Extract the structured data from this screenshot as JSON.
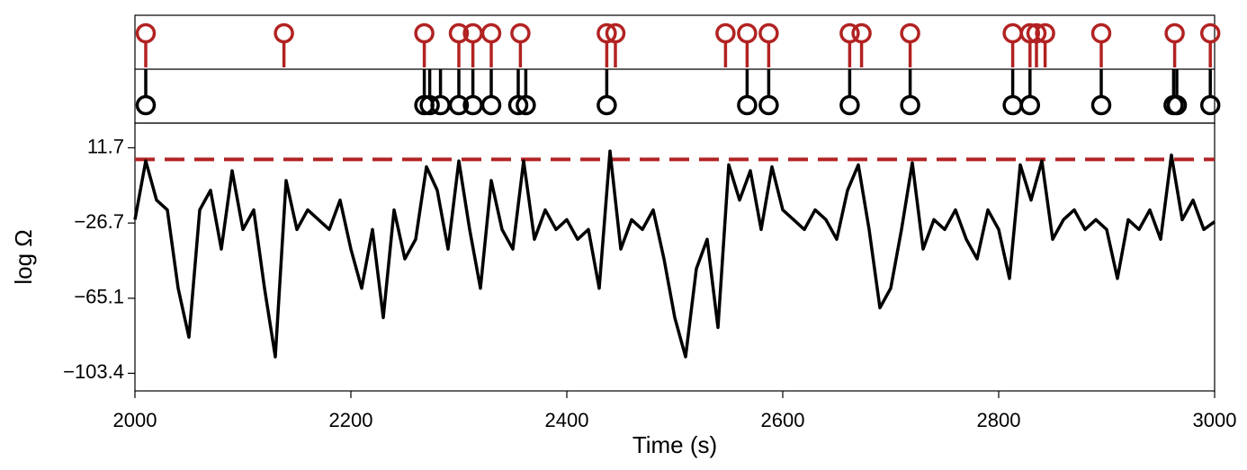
{
  "chart_data": {
    "type": "line",
    "x_label": "Time (s)",
    "y_label": "log Ω",
    "x": [
      2000,
      2010,
      2020,
      2030,
      2040,
      2050,
      2060,
      2070,
      2080,
      2090,
      2100,
      2110,
      2120,
      2130,
      2140,
      2150,
      2160,
      2170,
      2180,
      2190,
      2200,
      2210,
      2220,
      2230,
      2240,
      2250,
      2260,
      2270,
      2280,
      2290,
      2300,
      2310,
      2320,
      2330,
      2340,
      2350,
      2360,
      2370,
      2380,
      2390,
      2400,
      2410,
      2420,
      2430,
      2440,
      2450,
      2460,
      2470,
      2480,
      2490,
      2500,
      2510,
      2520,
      2530,
      2540,
      2550,
      2560,
      2570,
      2580,
      2590,
      2600,
      2610,
      2620,
      2630,
      2640,
      2650,
      2660,
      2670,
      2680,
      2690,
      2700,
      2710,
      2720,
      2730,
      2740,
      2750,
      2760,
      2770,
      2780,
      2790,
      2800,
      2810,
      2820,
      2830,
      2840,
      2850,
      2860,
      2870,
      2880,
      2890,
      2900,
      2910,
      2920,
      2930,
      2940,
      2950,
      2960,
      2970,
      2980,
      2990,
      3000
    ],
    "series": [
      {
        "color": "#000000",
        "values": [
          -25,
          5,
          -15,
          -20,
          -60,
          -85,
          -20,
          -10,
          -40,
          0,
          -30,
          -20,
          -60,
          -95,
          -5,
          -30,
          -20,
          -25,
          -30,
          -15,
          -40,
          -60,
          -30,
          -75,
          -20,
          -45,
          -35,
          2,
          -10,
          -40,
          5,
          -30,
          -60,
          -5,
          -30,
          -40,
          5,
          -35,
          -20,
          -30,
          -25,
          -35,
          -30,
          -60,
          10,
          -40,
          -25,
          -30,
          -20,
          -45,
          -75,
          -95,
          -50,
          -35,
          -80,
          3,
          -15,
          0,
          -30,
          2,
          -20,
          -25,
          -30,
          -20,
          -25,
          -35,
          -10,
          3,
          -30,
          -70,
          -60,
          -30,
          4,
          -40,
          -25,
          -30,
          -20,
          -35,
          -45,
          -20,
          -30,
          -55,
          3,
          -15,
          5,
          -35,
          -25,
          -20,
          -30,
          -25,
          -30,
          -55,
          -25,
          -30,
          -20,
          -35,
          8,
          -25,
          -15,
          -30,
          -26
        ]
      }
    ],
    "threshold": 5.8,
    "threshold_color": "#b22222",
    "events": [
      {
        "color": "#b22222",
        "times": [
          2010,
          2138,
          2268,
          2300,
          2313,
          2330,
          2357,
          2437,
          2445,
          2547,
          2567,
          2587,
          2662,
          2673,
          2718,
          2813,
          2829,
          2835,
          2843,
          2895,
          2963,
          2996
        ]
      },
      {
        "color": "#000000",
        "times": [
          2010,
          2268,
          2273,
          2283,
          2300,
          2313,
          2330,
          2355,
          2362,
          2437,
          2567,
          2587,
          2662,
          2718,
          2813,
          2829,
          2895,
          2962,
          2965,
          2996
        ]
      }
    ],
    "xlim": [
      2000,
      3000
    ],
    "xticks": [
      2000,
      2200,
      2400,
      2600,
      2800,
      3000
    ],
    "ylim": [
      -112.4,
      24.3
    ],
    "yticks": [
      11.7,
      {
        "value": -26.7,
        "label": "−26.7"
      },
      {
        "value": -65.1,
        "label": "−65.1"
      },
      {
        "value": -103.4,
        "label": "−103.4"
      }
    ]
  }
}
